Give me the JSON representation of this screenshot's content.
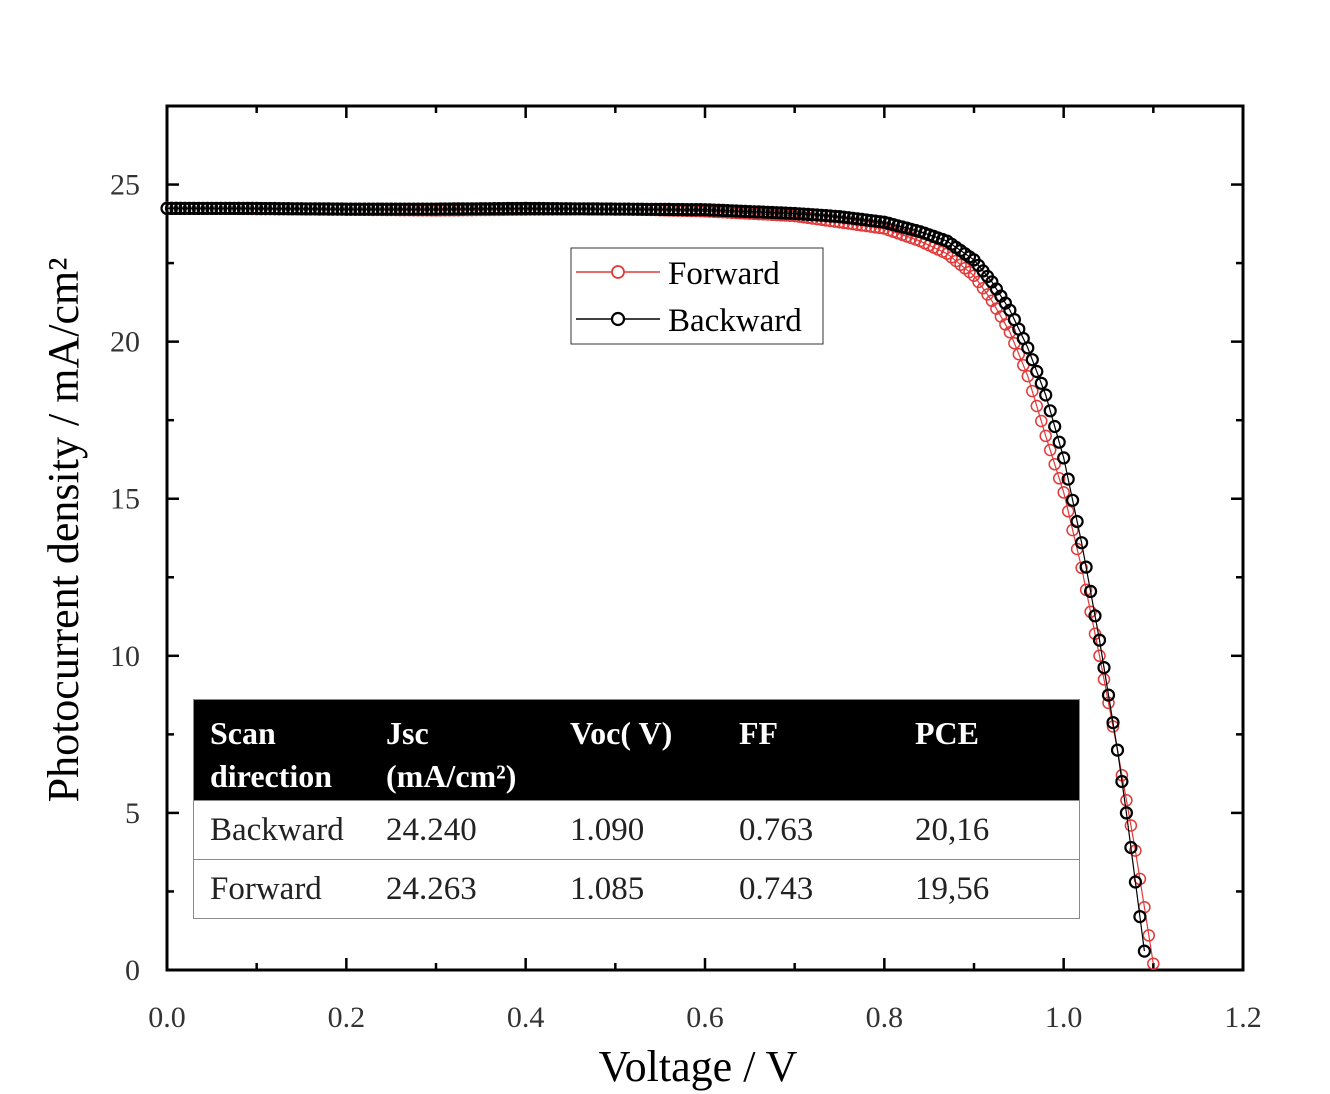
{
  "chart_data": {
    "type": "scatter",
    "title": "",
    "xlabel": "Voltage / V",
    "ylabel": "Photocurrent density / mA/cm²",
    "xlim": [
      0,
      1.2
    ],
    "ylim": [
      0,
      27.5
    ],
    "x_ticks": [
      "0.0",
      "0.2",
      "0.4",
      "0.6",
      "0.8",
      "1.0",
      "1.2"
    ],
    "y_ticks": [
      "0",
      "5",
      "10",
      "15",
      "20",
      "25"
    ],
    "grid": false,
    "legend_position": "top-center",
    "series": [
      {
        "name": "Forward",
        "color": "#e03a3a",
        "marker": "open-circle",
        "points": [
          [
            0.0,
            24.26
          ],
          [
            0.1,
            24.22
          ],
          [
            0.2,
            24.2
          ],
          [
            0.3,
            24.18
          ],
          [
            0.4,
            24.2
          ],
          [
            0.5,
            24.22
          ],
          [
            0.6,
            24.15
          ],
          [
            0.7,
            24.0
          ],
          [
            0.75,
            23.8
          ],
          [
            0.8,
            23.6
          ],
          [
            0.84,
            23.2
          ],
          [
            0.87,
            22.8
          ],
          [
            0.9,
            22.1
          ],
          [
            0.92,
            21.3
          ],
          [
            0.94,
            20.3
          ],
          [
            0.96,
            18.9
          ],
          [
            0.98,
            17.0
          ],
          [
            1.0,
            15.2
          ],
          [
            1.02,
            12.8
          ],
          [
            1.04,
            10.0
          ],
          [
            1.06,
            7.0
          ],
          [
            1.08,
            3.8
          ],
          [
            1.09,
            2.0
          ],
          [
            1.1,
            0.2
          ]
        ]
      },
      {
        "name": "Backward",
        "color": "#000000",
        "marker": "open-circle",
        "points": [
          [
            0.0,
            24.24
          ],
          [
            0.1,
            24.24
          ],
          [
            0.2,
            24.22
          ],
          [
            0.3,
            24.22
          ],
          [
            0.4,
            24.24
          ],
          [
            0.5,
            24.22
          ],
          [
            0.6,
            24.2
          ],
          [
            0.7,
            24.08
          ],
          [
            0.75,
            23.98
          ],
          [
            0.8,
            23.8
          ],
          [
            0.84,
            23.5
          ],
          [
            0.87,
            23.2
          ],
          [
            0.9,
            22.6
          ],
          [
            0.92,
            21.9
          ],
          [
            0.94,
            21.0
          ],
          [
            0.96,
            19.8
          ],
          [
            0.98,
            18.3
          ],
          [
            1.0,
            16.3
          ],
          [
            1.02,
            13.6
          ],
          [
            1.04,
            10.5
          ],
          [
            1.06,
            7.0
          ],
          [
            1.07,
            5.0
          ],
          [
            1.08,
            2.8
          ],
          [
            1.09,
            0.6
          ]
        ]
      }
    ],
    "table": {
      "headers": [
        "Scan\ndirection",
        "Jsc\n(mA/cm²)",
        "Voc( V)",
        "FF",
        "PCE"
      ],
      "rows": [
        [
          "Backward",
          "24.240",
          "1.090",
          "0.763",
          "20,16"
        ],
        [
          "Forward",
          "24.263",
          "1.085",
          "0.743",
          "19,56"
        ]
      ]
    }
  }
}
